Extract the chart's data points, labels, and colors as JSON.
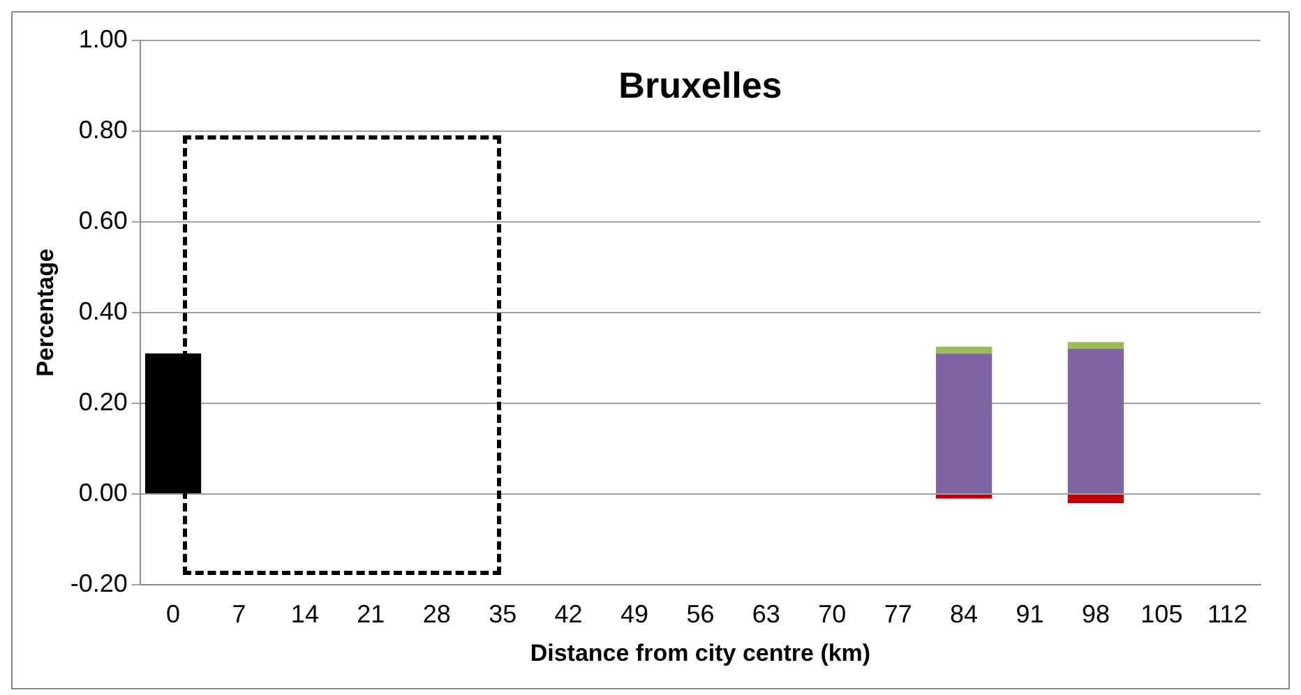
{
  "chart_data": {
    "type": "bar",
    "title": "Bruxelles",
    "xlabel": "Distance from city centre (km)",
    "ylabel": "Percentage",
    "stacked": true,
    "categories": [
      "0",
      "7",
      "14",
      "21",
      "28",
      "35",
      "42",
      "49",
      "56",
      "63",
      "70",
      "77",
      "84",
      "91",
      "98",
      "105",
      "112"
    ],
    "series": [
      {
        "color": "#000000",
        "values": [
          0.31,
          null,
          null,
          null,
          null,
          null,
          null,
          null,
          null,
          null,
          null,
          null,
          null,
          null,
          null,
          null,
          null
        ]
      },
      {
        "color": "#8064a2",
        "values": [
          null,
          null,
          null,
          null,
          null,
          null,
          null,
          null,
          null,
          null,
          null,
          null,
          0.31,
          null,
          0.32,
          null,
          null
        ]
      },
      {
        "color": "#9bbb59",
        "values": [
          null,
          null,
          null,
          null,
          null,
          null,
          null,
          null,
          null,
          null,
          null,
          null,
          0.015,
          null,
          0.015,
          null,
          null
        ]
      },
      {
        "color": "#c00000",
        "values": [
          null,
          null,
          null,
          null,
          null,
          null,
          null,
          null,
          null,
          null,
          null,
          null,
          -0.01,
          null,
          -0.02,
          null,
          null
        ]
      }
    ],
    "ylim": [
      -0.2,
      1.0
    ],
    "yticks": [
      {
        "value": -0.2,
        "label": "-0.20"
      },
      {
        "value": 0,
        "label": "0.00"
      },
      {
        "value": 0.2,
        "label": "0.20"
      },
      {
        "value": 0.4,
        "label": "0.40"
      },
      {
        "value": 0.6,
        "label": "0.60"
      },
      {
        "value": 0.8,
        "label": "0.80"
      },
      {
        "value": 1.0,
        "label": "1.00"
      }
    ],
    "grid": "y",
    "legend": false
  }
}
